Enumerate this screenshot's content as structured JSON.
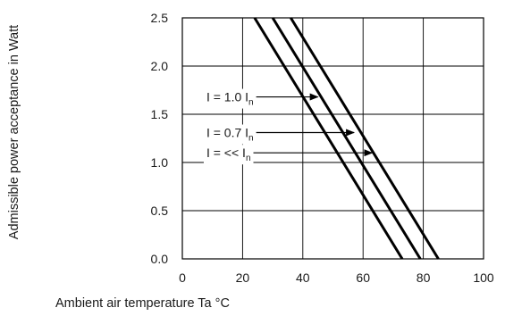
{
  "chart_data": {
    "type": "line",
    "title": "",
    "xlabel": "Ambient air temperature Ta °C",
    "ylabel": "Admissible power acceptance in Watt",
    "xlim": [
      0,
      100
    ],
    "ylim": [
      0,
      2.5
    ],
    "xticks": [
      "0",
      "20",
      "40",
      "60",
      "80",
      "100"
    ],
    "yticks": [
      "0.0",
      "0.5",
      "1.0",
      "1.5",
      "2.0",
      "2.5"
    ],
    "grid": true,
    "legend": "none",
    "line_color": "#000000",
    "series": [
      {
        "points": [
          [
            24,
            2.5
          ],
          [
            73,
            0
          ]
        ]
      },
      {
        "points": [
          [
            30,
            2.5
          ],
          [
            79,
            0
          ]
        ]
      },
      {
        "points": [
          [
            36,
            2.5
          ],
          [
            85,
            0
          ]
        ]
      }
    ],
    "annotations": [
      {
        "text": "I = 1.0 I",
        "sub": "n",
        "y": 1.68,
        "arrow_to": [
          45,
          1.68
        ]
      },
      {
        "text": "I = 0.7 I",
        "sub": "n",
        "y": 1.31,
        "arrow_to": [
          57,
          1.31
        ]
      },
      {
        "text": "I = << I",
        "sub": "n",
        "y": 1.1,
        "arrow_to": [
          63,
          1.1
        ]
      }
    ]
  }
}
